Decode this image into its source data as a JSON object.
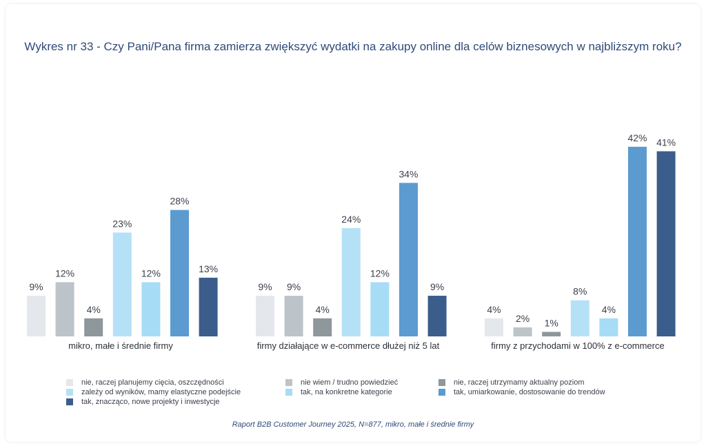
{
  "chart_data": {
    "type": "bar",
    "title": "Wykres nr 33 - Czy Pani/Pana firma zamierza zwiększyć wydatki na zakupy online dla celów biznesowych w najbliższym roku?",
    "categories": [
      "mikro, małe i średnie firmy",
      "firmy działające w e-commerce dłużej niż 5 lat",
      "firmy z przychodami w 100% z e-commerce"
    ],
    "series": [
      {
        "name": "nie, raczej planujemy cięcia, oszczędności",
        "color": "#e4e7ec",
        "values": [
          9,
          9,
          4
        ]
      },
      {
        "name": "nie wiem / trudno powiedzieć",
        "color": "#bcc4ca",
        "values": [
          12,
          9,
          2
        ]
      },
      {
        "name": "nie, raczej utrzymamy aktualny poziom",
        "color": "#8e979b",
        "values": [
          4,
          4,
          1
        ]
      },
      {
        "name": "zależy od wyników, mamy elastyczne podejście",
        "color": "#b5e1f7",
        "values": [
          23,
          24,
          8
        ]
      },
      {
        "name": "tak, na konkretne kategorie",
        "color": "#a7dcf7",
        "values": [
          12,
          12,
          4
        ]
      },
      {
        "name": "tak, umiarkowanie, dostosowanie do trendów",
        "color": "#5b9bd0",
        "values": [
          28,
          34,
          42
        ]
      },
      {
        "name": "tak, znacząco, nowe projekty i inwestycje",
        "color": "#3b5d8c",
        "values": [
          13,
          9,
          41
        ]
      }
    ],
    "value_suffix": "%",
    "ylim": [
      0,
      45
    ],
    "grid": false,
    "legend_position": "bottom"
  },
  "caption": "Raport B2B Customer Journey 2025, N=877, mikro, małe i średnie firmy"
}
